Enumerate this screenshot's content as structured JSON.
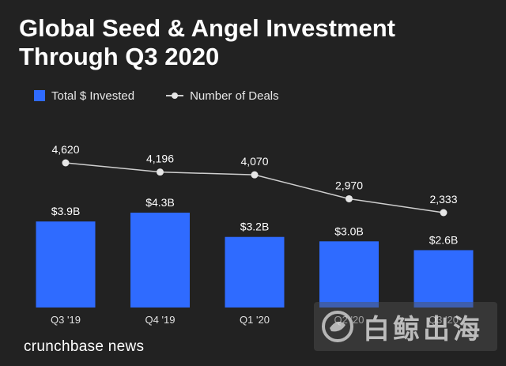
{
  "header": {
    "title": "Global Seed & Angel Investment Through Q3 2020"
  },
  "legend": {
    "bars_label": "Total $ Invested",
    "line_label": "Number of Deals"
  },
  "footer": {
    "brand": "crunchbase news"
  },
  "watermark": {
    "text": "白鲸出海"
  },
  "colors": {
    "background": "#222222",
    "bar": "#2f6bff",
    "line": "#cfcfcf",
    "marker": "#e6e6e6",
    "text": "#ffffff"
  },
  "chart_data": {
    "type": "bar",
    "title": "Global Seed & Angel Investment Through Q3 2020",
    "categories": [
      "Q3 '19",
      "Q4 '19",
      "Q1 '20",
      "Q2 '20",
      "Q3 '20"
    ],
    "series": [
      {
        "name": "Total $ Invested",
        "type": "bar",
        "values": [
          3.9,
          4.3,
          3.2,
          3.0,
          2.6
        ],
        "labels": [
          "$3.9B",
          "$4.3B",
          "$3.2B",
          "$3.0B",
          "$2.6B"
        ]
      },
      {
        "name": "Number of Deals",
        "type": "line",
        "values": [
          4620,
          4196,
          4070,
          2970,
          2333
        ],
        "labels": [
          "4,620",
          "4,196",
          "4,070",
          "2,970",
          "2,333"
        ]
      }
    ],
    "legend_position": "top-left",
    "grid": false
  }
}
